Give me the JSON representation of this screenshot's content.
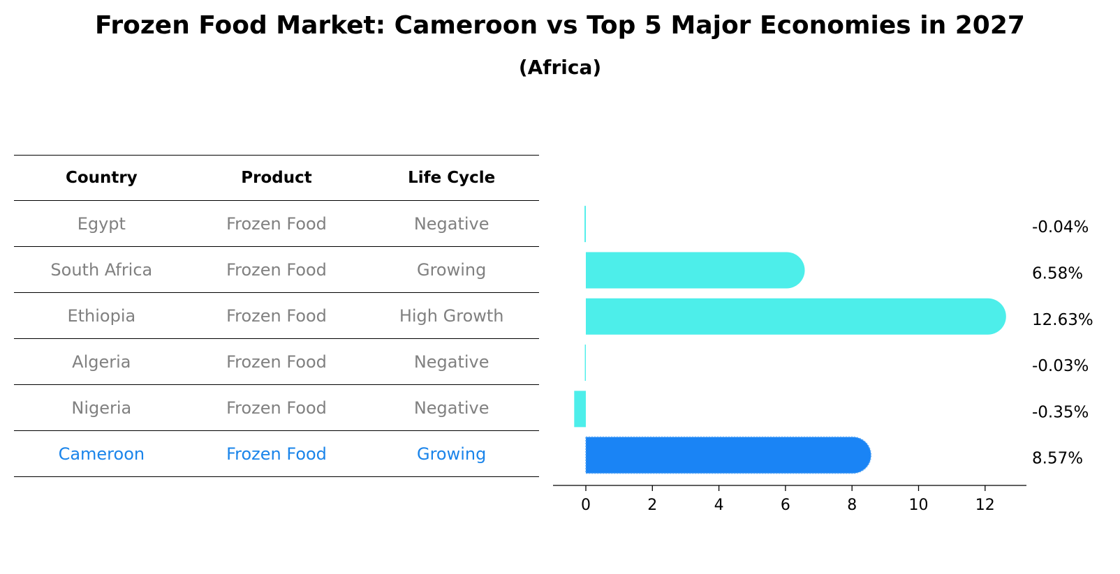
{
  "title": "Frozen Food Market: Cameroon vs Top 5 Major Economies in 2027",
  "subtitle": "(Africa)",
  "table": {
    "headers": [
      "Country",
      "Product",
      "Life Cycle"
    ],
    "rows": [
      [
        "Egypt",
        "Frozen Food",
        "Negative"
      ],
      [
        "South Africa",
        "Frozen Food",
        "Growing"
      ],
      [
        "Ethiopia",
        "Frozen Food",
        "High Growth"
      ],
      [
        "Algeria",
        "Frozen Food",
        "Negative"
      ],
      [
        "Nigeria",
        "Frozen Food",
        "Negative"
      ],
      [
        "Cameroon",
        "Frozen Food",
        "Growing"
      ]
    ],
    "highlight_index": 5
  },
  "chart_data": {
    "type": "bar",
    "orientation": "horizontal",
    "categories": [
      "Egypt",
      "South Africa",
      "Ethiopia",
      "Algeria",
      "Nigeria",
      "Cameroon"
    ],
    "values": [
      -0.04,
      6.58,
      12.63,
      -0.03,
      -0.35,
      8.57
    ],
    "value_labels": [
      "-0.04%",
      "6.58%",
      "12.63%",
      "-0.03%",
      "-0.35%",
      "8.57%"
    ],
    "xlim": [
      -1,
      13.3
    ],
    "xticks": [
      0,
      2,
      4,
      6,
      8,
      10,
      12
    ],
    "xtick_labels": [
      "0",
      "2",
      "4",
      "6",
      "8",
      "10",
      "12"
    ],
    "highlight": "Cameroon",
    "colors": {
      "bar": "#4deeea",
      "highlight": "#1a84f5",
      "table_highlight": "#1a84ea",
      "text_muted": "#808080"
    }
  }
}
